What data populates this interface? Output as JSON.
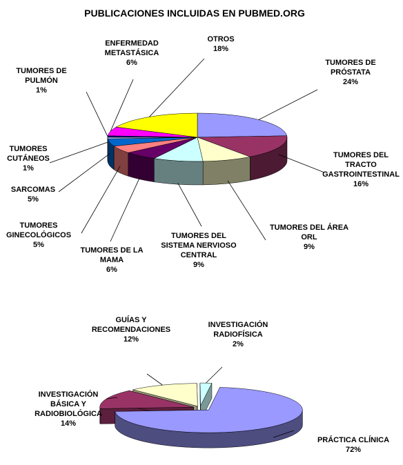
{
  "chart_data": [
    {
      "type": "pie",
      "title": "PUBLICACIONES INCLUIDAS EN PUBMED.ORG",
      "slices": [
        {
          "lines": [
            "TUMORES DE",
            "PRÓSTATA"
          ],
          "pct": "24%",
          "value": 24,
          "color": "#9999ff"
        },
        {
          "lines": [
            "TUMORES DEL",
            "TRACTO",
            "GASTROINTESTINAL"
          ],
          "pct": "16%",
          "value": 16,
          "color": "#993366"
        },
        {
          "lines": [
            "TUMORES DEL ÁREA",
            "ORL"
          ],
          "pct": "9%",
          "value": 9,
          "color": "#ffffcc"
        },
        {
          "lines": [
            "TUMORES DEL",
            "SISTEMA NERVIOSO",
            "CENTRAL"
          ],
          "pct": "9%",
          "value": 9,
          "color": "#ccffff"
        },
        {
          "lines": [
            "TUMORES DE LA",
            "MAMA"
          ],
          "pct": "6%",
          "value": 6,
          "color": "#660066"
        },
        {
          "lines": [
            "TUMORES",
            "GINECOLÓGICOS"
          ],
          "pct": "5%",
          "value": 5,
          "color": "#ff8080"
        },
        {
          "lines": [
            "SARCOMAS"
          ],
          "pct": "5%",
          "value": 5,
          "color": "#0066cc"
        },
        {
          "lines": [
            "TUMORES",
            "CUTÁNEOS"
          ],
          "pct": "1%",
          "value": 1,
          "color": "#ccccff"
        },
        {
          "lines": [
            "TUMORES DE",
            "PULMÓN"
          ],
          "pct": "1%",
          "value": 1,
          "color": "#000080"
        },
        {
          "lines": [
            "ENFERMEDAD",
            "METASTÁSICA"
          ],
          "pct": "6%",
          "value": 6,
          "color": "#ff00ff"
        },
        {
          "lines": [
            "OTROS"
          ],
          "pct": "18%",
          "value": 18,
          "color": "#ffff00"
        }
      ]
    },
    {
      "type": "pie",
      "title": "",
      "slices": [
        {
          "lines": [
            "PRÁCTICA CLÍNICA"
          ],
          "pct": "72%",
          "value": 72,
          "color": "#9999ff"
        },
        {
          "lines": [
            "INVESTIGACIÓN",
            "BÁSICA Y",
            "RADIOBIOLÓGICA"
          ],
          "pct": "14%",
          "value": 14,
          "color": "#993366"
        },
        {
          "lines": [
            "GUÍAS Y",
            "RECOMENDACIONES"
          ],
          "pct": "12%",
          "value": 12,
          "color": "#ffffcc"
        },
        {
          "lines": [
            "INVESTIGACIÓN",
            "RADIOFÍSICA"
          ],
          "pct": "2%",
          "value": 2,
          "color": "#ccffff"
        }
      ]
    }
  ]
}
